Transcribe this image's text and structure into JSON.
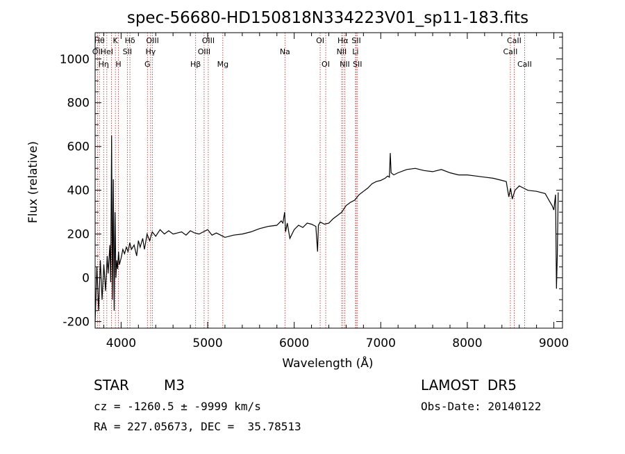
{
  "title": "spec-56680-HD150818N334223V01_sp11-183.fits",
  "footer": {
    "class_label": "STAR",
    "subclass": "M3",
    "survey": "LAMOST  DR5",
    "cz_line": "cz = -1260.5 ± -9999 km/s",
    "obs_date": "Obs-Date: 20140122",
    "radec_line": "RA = 227.05673, DEC =  35.78513"
  },
  "chart_data": {
    "type": "line",
    "title": "spec-56680-HD150818N334223V01_sp11-183.fits",
    "xlabel": "Wavelength (Å)",
    "ylabel": "Flux (relative)",
    "xlim": [
      3700,
      9100
    ],
    "ylim": [
      -230,
      1120
    ],
    "xticks": [
      4000,
      5000,
      6000,
      7000,
      8000,
      9000
    ],
    "yticks": [
      -200,
      0,
      200,
      400,
      600,
      800,
      1000
    ],
    "line_color": "#000000",
    "marker_color": "#b22222",
    "series": [
      {
        "x": [
          3700,
          3720,
          3740,
          3760,
          3780,
          3800,
          3820,
          3840,
          3850,
          3860,
          3870,
          3880,
          3890,
          3900,
          3910,
          3920,
          3930,
          3940,
          3950,
          3960,
          3970,
          3980,
          4000,
          4020,
          4040,
          4060,
          4080,
          4100,
          4120,
          4150,
          4180,
          4200,
          4220,
          4250,
          4270,
          4300,
          4330,
          4360,
          4400,
          4450,
          4500,
          4550,
          4600,
          4650,
          4700,
          4750,
          4800,
          4850,
          4900,
          4950,
          5000,
          5050,
          5100,
          5150,
          5200,
          5300,
          5400,
          5500,
          5600,
          5700,
          5800,
          5850,
          5870,
          5890,
          5900,
          5920,
          5950,
          6000,
          6050,
          6100,
          6150,
          6200,
          6250,
          6270,
          6280,
          6300,
          6350,
          6400,
          6450,
          6500,
          6550,
          6600,
          6650,
          6700,
          6750,
          6800,
          6850,
          6900,
          6950,
          7000,
          7050,
          7080,
          7100,
          7110,
          7120,
          7150,
          7200,
          7300,
          7400,
          7500,
          7600,
          7700,
          7800,
          7900,
          8000,
          8100,
          8200,
          8300,
          8400,
          8450,
          8480,
          8500,
          8520,
          8550,
          8600,
          8650,
          8700,
          8800,
          8900,
          8950,
          8980,
          9000,
          9020,
          9030,
          9040,
          9050
        ],
        "y": [
          -200,
          50,
          -150,
          80,
          -100,
          60,
          -60,
          100,
          20,
          80,
          150,
          -20,
          650,
          -100,
          450,
          -150,
          300,
          0,
          80,
          40,
          120,
          60,
          90,
          130,
          110,
          140,
          120,
          160,
          130,
          150,
          100,
          170,
          140,
          180,
          130,
          200,
          170,
          210,
          190,
          220,
          200,
          215,
          200,
          205,
          210,
          195,
          215,
          205,
          200,
          210,
          220,
          195,
          205,
          195,
          185,
          195,
          200,
          210,
          225,
          235,
          240,
          260,
          250,
          300,
          210,
          250,
          180,
          220,
          240,
          230,
          250,
          245,
          235,
          120,
          240,
          255,
          245,
          250,
          270,
          285,
          300,
          330,
          345,
          355,
          380,
          395,
          410,
          430,
          440,
          445,
          455,
          465,
          460,
          570,
          480,
          470,
          480,
          495,
          500,
          490,
          485,
          495,
          480,
          470,
          470,
          465,
          460,
          455,
          445,
          440,
          370,
          410,
          360,
          400,
          420,
          410,
          400,
          395,
          385,
          350,
          330,
          310,
          380,
          -50,
          100,
          390
        ]
      }
    ],
    "line_markers": [
      {
        "x": 3727,
        "labels": [
          "OII"
        ],
        "row": 2
      },
      {
        "x": 3750,
        "labels": [
          "Hθ"
        ],
        "row": 1
      },
      {
        "x": 3798,
        "labels": [
          "Hη"
        ],
        "row": 3
      },
      {
        "x": 3835,
        "labels": [
          "HeI"
        ],
        "row": 2
      },
      {
        "x": 3889,
        "labels": [],
        "row": 0
      },
      {
        "x": 3934,
        "labels": [
          "K"
        ],
        "row": 1
      },
      {
        "x": 3969,
        "labels": [
          "H"
        ],
        "row": 3
      },
      {
        "x": 4072,
        "labels": [
          "SII"
        ],
        "row": 2
      },
      {
        "x": 4102,
        "labels": [
          "Hδ"
        ],
        "row": 1
      },
      {
        "x": 4304,
        "labels": [
          "G"
        ],
        "row": 3
      },
      {
        "x": 4341,
        "labels": [
          "Hγ"
        ],
        "row": 2
      },
      {
        "x": 4363,
        "labels": [
          "OIII"
        ],
        "row": 1
      },
      {
        "x": 4861,
        "labels": [
          "Hβ"
        ],
        "row": 3
      },
      {
        "x": 4959,
        "labels": [
          "OIII"
        ],
        "row": 2
      },
      {
        "x": 5007,
        "labels": [
          "OIII"
        ],
        "row": 1
      },
      {
        "x": 5175,
        "labels": [
          "Mg"
        ],
        "row": 3
      },
      {
        "x": 5893,
        "labels": [
          "Na"
        ],
        "row": 2
      },
      {
        "x": 6300,
        "labels": [
          "OI"
        ],
        "row": 1
      },
      {
        "x": 6364,
        "labels": [
          "OI"
        ],
        "row": 3
      },
      {
        "x": 6548,
        "labels": [
          "NII"
        ],
        "row": 2
      },
      {
        "x": 6563,
        "labels": [
          "Hα"
        ],
        "row": 1
      },
      {
        "x": 6584,
        "labels": [
          "NII"
        ],
        "row": 3
      },
      {
        "x": 6708,
        "labels": [
          "Li"
        ],
        "row": 2
      },
      {
        "x": 6717,
        "labels": [
          "SII"
        ],
        "row": 1
      },
      {
        "x": 6731,
        "labels": [
          "SII"
        ],
        "row": 3
      },
      {
        "x": 8498,
        "labels": [
          "CaII"
        ],
        "row": 2
      },
      {
        "x": 8542,
        "labels": [
          "CaII"
        ],
        "row": 1
      },
      {
        "x": 8662,
        "labels": [
          "CaII"
        ],
        "row": 3
      }
    ]
  }
}
